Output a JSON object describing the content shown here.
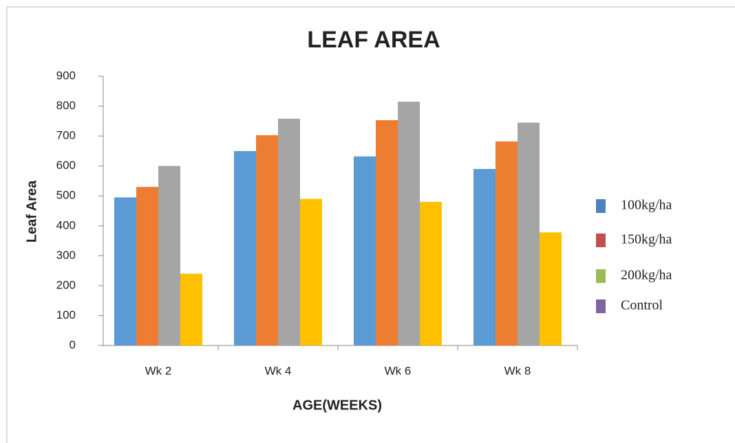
{
  "chart_data": {
    "type": "bar",
    "title": "LEAF AREA",
    "x_label": "AGE(WEEKS)",
    "y_label": "Leaf Area",
    "categories": [
      "Wk 2",
      "Wk 4",
      "Wk 6",
      "Wk 8"
    ],
    "series": [
      {
        "name": "100kg/ha",
        "color": "#5b9bd5",
        "legend_color": "#4f81bd",
        "values": [
          495,
          650,
          632,
          590
        ]
      },
      {
        "name": "150kg/ha",
        "color": "#ed7d31",
        "legend_color": "#c0504d",
        "values": [
          530,
          703,
          753,
          682
        ]
      },
      {
        "name": "200kg/ha",
        "color": "#a5a5a5",
        "legend_color": "#9bbb59",
        "values": [
          600,
          758,
          815,
          745
        ]
      },
      {
        "name": "Control",
        "color": "#ffc000",
        "legend_color": "#8064a2",
        "values": [
          240,
          490,
          480,
          378
        ]
      }
    ],
    "ylim": [
      0,
      900
    ],
    "yticks": [
      0,
      100,
      200,
      300,
      400,
      500,
      600,
      700,
      800,
      900
    ],
    "grid": false,
    "legend": "right"
  }
}
